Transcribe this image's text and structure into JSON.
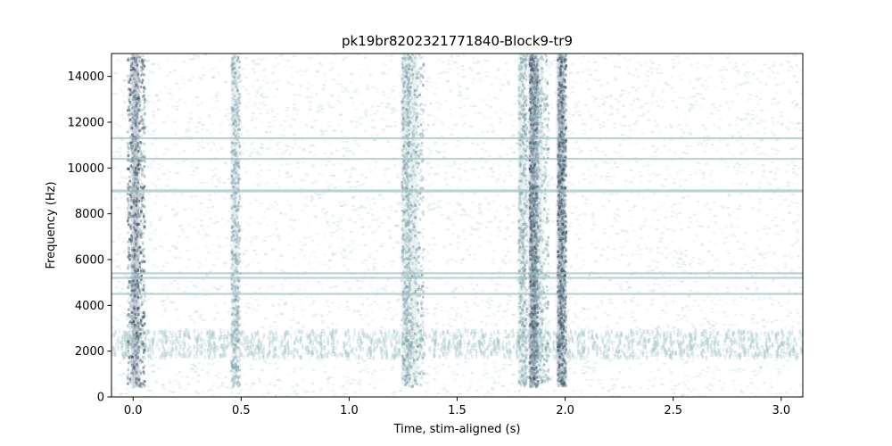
{
  "chart_data": {
    "type": "heatmap",
    "title": "pk19br8202321771840-Block9-tr9",
    "xlabel": "Time, stim-aligned (s)",
    "ylabel": "Frequency (Hz)",
    "xlim": [
      -0.1,
      3.1
    ],
    "ylim": [
      0,
      15000
    ],
    "x_ticks": [
      0.0,
      0.5,
      1.0,
      1.5,
      2.0,
      2.5,
      3.0
    ],
    "x_tick_labels": [
      "0.0",
      "0.5",
      "1.0",
      "1.5",
      "2.0",
      "2.5",
      "3.0"
    ],
    "y_ticks": [
      0,
      2000,
      4000,
      6000,
      8000,
      10000,
      12000,
      14000
    ],
    "y_tick_labels": [
      "0",
      "2000",
      "4000",
      "6000",
      "8000",
      "10000",
      "12000",
      "14000"
    ],
    "grid": false,
    "colormap": "bone_r (white → teal-grey → dark slate)",
    "colors": {
      "low": "#ffffff",
      "mid": "#a9c9c9",
      "high": "#3e4d63"
    },
    "broadband_events_s": [
      0.01,
      0.47,
      1.26,
      1.3,
      1.8,
      1.85,
      1.88,
      1.98
    ],
    "tonal_bands_hz": [
      11300,
      10400,
      9000,
      5400,
      5200,
      4500
    ],
    "low_band_hz": [
      1800,
      3000
    ]
  }
}
